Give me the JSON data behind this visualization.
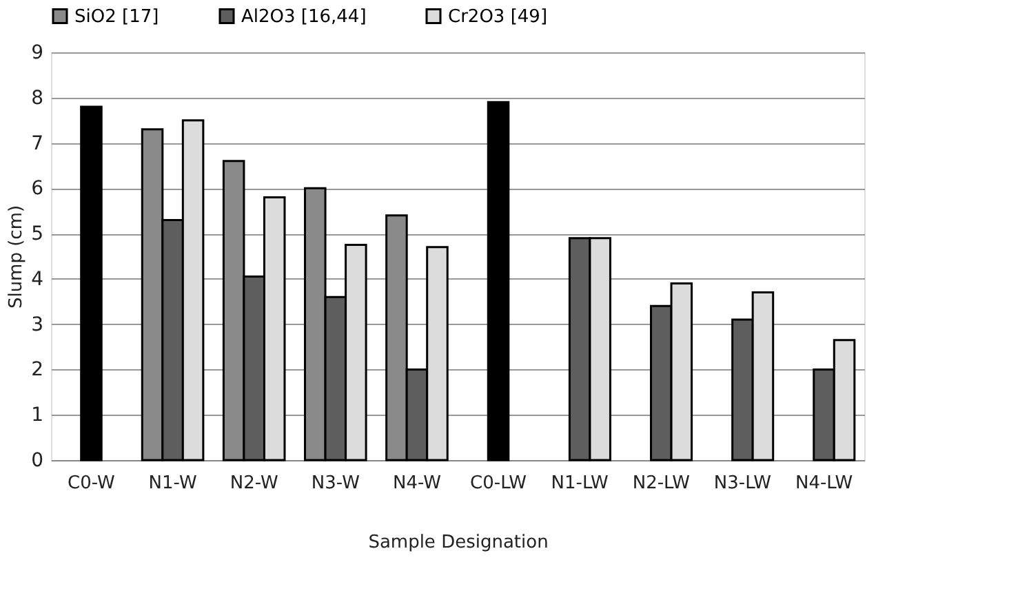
{
  "chart_data": {
    "type": "bar",
    "xlabel": "Sample Designation",
    "ylabel": "Slump (cm)",
    "categories": [
      "C0-W",
      "N1-W",
      "N2-W",
      "N3-W",
      "N4-W",
      "C0-LW",
      "N1-LW",
      "N2-LW",
      "N3-LW",
      "N4-LW"
    ],
    "series": [
      {
        "color": "#000000",
        "values": [
          7.8,
          null,
          null,
          null,
          null,
          7.9,
          null,
          null,
          null,
          null
        ]
      },
      {
        "name": "SiO2 [17]",
        "color": "#8a8a8a",
        "values": [
          null,
          7.3,
          6.6,
          6.0,
          5.4,
          null,
          null,
          null,
          null,
          null
        ]
      },
      {
        "name": "Al2O3 [16,44]",
        "color": "#5e5e5e",
        "values": [
          null,
          5.3,
          4.05,
          3.6,
          2.0,
          null,
          4.9,
          3.4,
          3.1,
          2.0
        ]
      },
      {
        "name": "Cr2O3 [49]",
        "color": "#dcdcdc",
        "values": [
          null,
          7.5,
          5.8,
          4.75,
          4.7,
          null,
          4.9,
          3.9,
          3.7,
          2.65
        ]
      }
    ],
    "ylim": [
      0,
      9
    ],
    "yticks": [
      0,
      1,
      2,
      3,
      4,
      5,
      6,
      7,
      8,
      9
    ],
    "grid": "y",
    "legend": "top"
  }
}
